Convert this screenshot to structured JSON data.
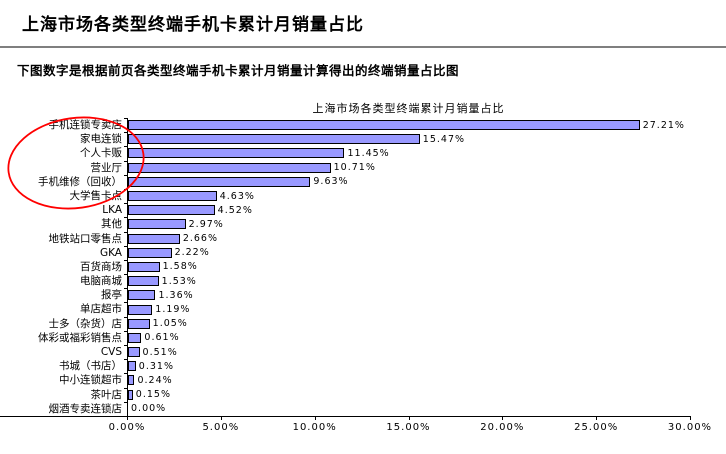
{
  "header": {
    "title": "上海市场各类型终端手机卡累计月销量占比",
    "subtitle": "下图数字是根据前页各类型终端手机卡累计月销量计算得出的终端销量占比图"
  },
  "chart_data": {
    "type": "bar",
    "orientation": "horizontal",
    "title": "上海市场各类型终端累计月销量占比",
    "categories": [
      "手机连锁专卖店",
      "家电连锁",
      "个人卡贩",
      "营业厅",
      "手机维修（回收）",
      "大学售卡点",
      "LKA",
      "其他",
      "地铁站口零售点",
      "GKA",
      "百货商场",
      "电脑商城",
      "报亭",
      "单店超市",
      "士多（杂货）店",
      "体彩或福彩销售点",
      "CVS",
      "书城（书店）",
      "中小连锁超市",
      "茶叶店",
      "烟酒专卖连锁店"
    ],
    "values": [
      27.21,
      15.47,
      11.45,
      10.71,
      9.63,
      4.63,
      4.52,
      2.97,
      2.66,
      2.22,
      1.58,
      1.53,
      1.36,
      1.19,
      1.05,
      0.61,
      0.51,
      0.31,
      0.24,
      0.15,
      0.0
    ],
    "value_labels": [
      "27.21%",
      "15.47%",
      "11.45%",
      "10.71%",
      "9.63%",
      "4.63%",
      "4.52%",
      "2.97%",
      "2.66%",
      "2.22%",
      "1.58%",
      "1.53%",
      "1.36%",
      "1.19%",
      "1.05%",
      "0.61%",
      "0.51%",
      "0.31%",
      "0.24%",
      "0.15%",
      "0.00%"
    ],
    "x_ticks": [
      "0.00%",
      "5.00%",
      "10.00%",
      "15.00%",
      "20.00%",
      "25.00%",
      "30.00%"
    ],
    "xlim": [
      0,
      30
    ],
    "grid": false,
    "legend": "none",
    "bar_fill": "#9999FF",
    "bar_border": "#000000",
    "axis_color": "#000000",
    "annotation": {
      "shape": "ellipse",
      "color": "#FF0000",
      "highlighted_categories": [
        "手机连锁专卖店",
        "家电连锁",
        "个人卡贩",
        "营业厅",
        "手机维修（回收）"
      ]
    }
  }
}
